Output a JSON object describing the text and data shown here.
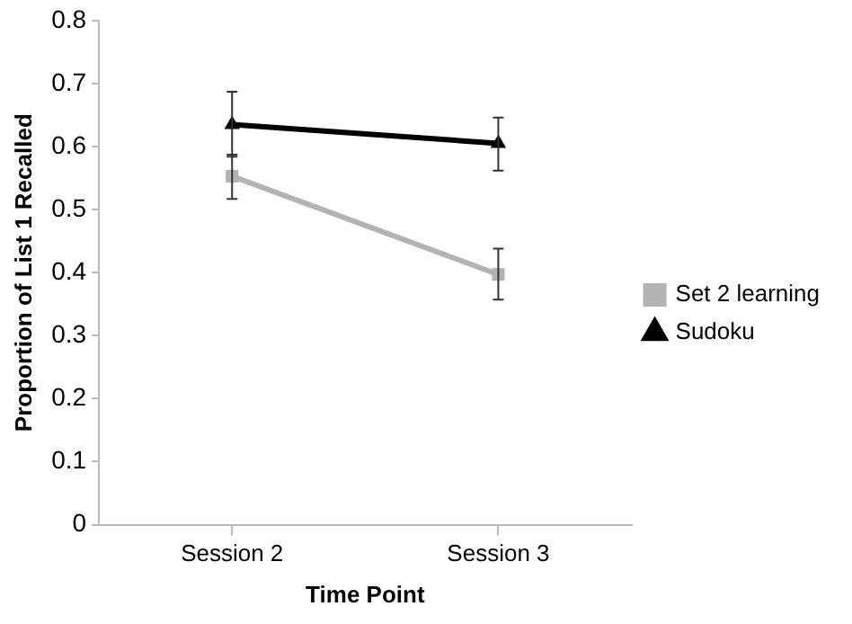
{
  "chart_data": {
    "type": "line",
    "xlabel": "Time Point",
    "ylabel": "Proportion of List 1 Recalled",
    "categories": [
      "Session 2",
      "Session 3"
    ],
    "series": [
      {
        "name": "Set 2 learning",
        "color": "#b3b3b3",
        "marker": "square",
        "values": [
          0.553,
          0.397
        ],
        "errors": [
          [
            0.517,
            0.587
          ],
          [
            0.357,
            0.438
          ]
        ]
      },
      {
        "name": "Sudoku",
        "color": "#000000",
        "marker": "triangle",
        "values": [
          0.635,
          0.605
        ],
        "errors": [
          [
            0.584,
            0.687
          ],
          [
            0.562,
            0.646
          ]
        ]
      }
    ],
    "ylim": [
      0,
      0.8
    ],
    "yticks": [
      0,
      0.1,
      0.2,
      0.3,
      0.4,
      0.5,
      0.6,
      0.7,
      0.8
    ],
    "grid": false,
    "legend": "right"
  }
}
